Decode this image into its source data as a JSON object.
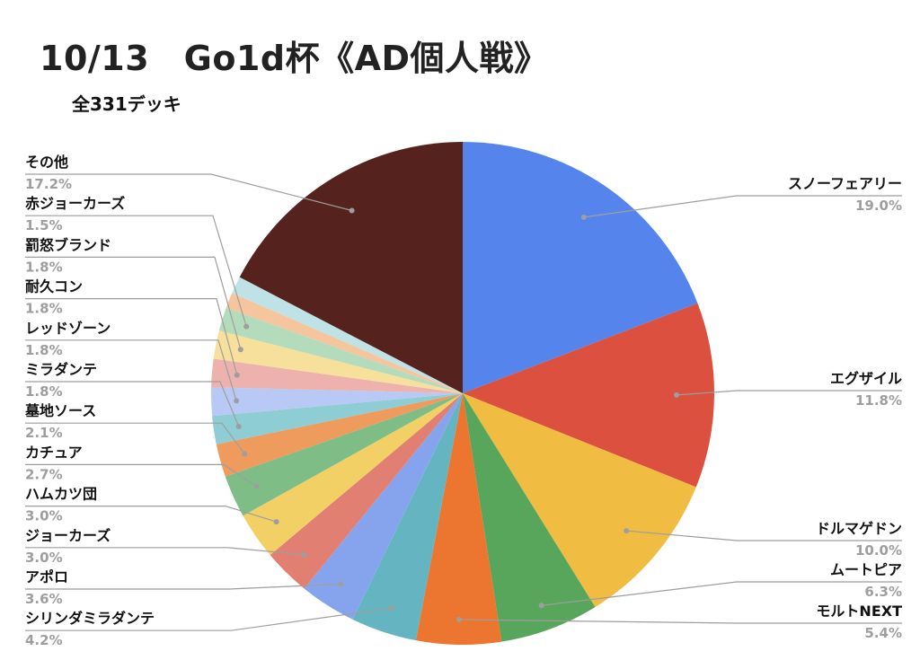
{
  "title": "10/13　Go1d杯《AD個人戦》",
  "subtitle": "全331デッキ",
  "chart_data": {
    "type": "pie",
    "title": "10/13　Go1d杯《AD個人戦》",
    "subtitle": "全331デッキ",
    "total_label": "全331デッキ",
    "start_angle_deg": 0,
    "direction": "clockwise",
    "slices": [
      {
        "label": "スノーフェアリー",
        "pct_text": "19.0%",
        "value": 19.0,
        "color": "#5585ec"
      },
      {
        "label": "エグザイル",
        "pct_text": "11.8%",
        "value": 11.8,
        "color": "#db503f"
      },
      {
        "label": "ドルマゲドン",
        "pct_text": "10.0%",
        "value": 10.0,
        "color": "#f1bc42"
      },
      {
        "label": "ムートピア",
        "pct_text": "6.3%",
        "value": 6.3,
        "color": "#57a65c"
      },
      {
        "label": "モルトNEXT",
        "pct_text": "5.4%",
        "value": 5.4,
        "color": "#ec7530"
      },
      {
        "label": "シリンダミラダンテ",
        "pct_text": "4.2%",
        "value": 4.2,
        "color": "#64b5c1"
      },
      {
        "label": "アポロ",
        "pct_text": "3.6%",
        "value": 3.6,
        "color": "#86a4ee"
      },
      {
        "label": "ジョーカーズ",
        "pct_text": "3.0%",
        "value": 3.0,
        "color": "#e27f73"
      },
      {
        "label": "ハムカツ団",
        "pct_text": "3.0%",
        "value": 3.0,
        "color": "#f3d065"
      },
      {
        "label": "カチュア",
        "pct_text": "2.7%",
        "value": 2.7,
        "color": "#7fbd86"
      },
      {
        "label": "墓地ソース",
        "pct_text": "2.1%",
        "value": 2.1,
        "color": "#ef9b5e"
      },
      {
        "label": "ミラダンテ",
        "pct_text": "1.8%",
        "value": 1.8,
        "color": "#8ecdd3"
      },
      {
        "label": "レッドゾーン",
        "pct_text": "1.8%",
        "value": 1.8,
        "color": "#b7c9f4"
      },
      {
        "label": "耐久コン",
        "pct_text": "1.8%",
        "value": 1.8,
        "color": "#eeb2ae"
      },
      {
        "label": "罰怒ブランド",
        "pct_text": "1.8%",
        "value": 1.8,
        "color": "#f7e09b"
      },
      {
        "label": "赤ジョーカーズ",
        "pct_text": "1.5%",
        "value": 1.5,
        "color": "#b4dbbb"
      },
      {
        "label": "",
        "pct_text": "",
        "value": 1.0,
        "color": "#f5c59d"
      },
      {
        "label": "",
        "pct_text": "",
        "value": 1.1,
        "color": "#bfe2e6"
      },
      {
        "label": "その他",
        "pct_text": "17.2%",
        "value": 17.2,
        "color": "#56221e"
      }
    ]
  }
}
